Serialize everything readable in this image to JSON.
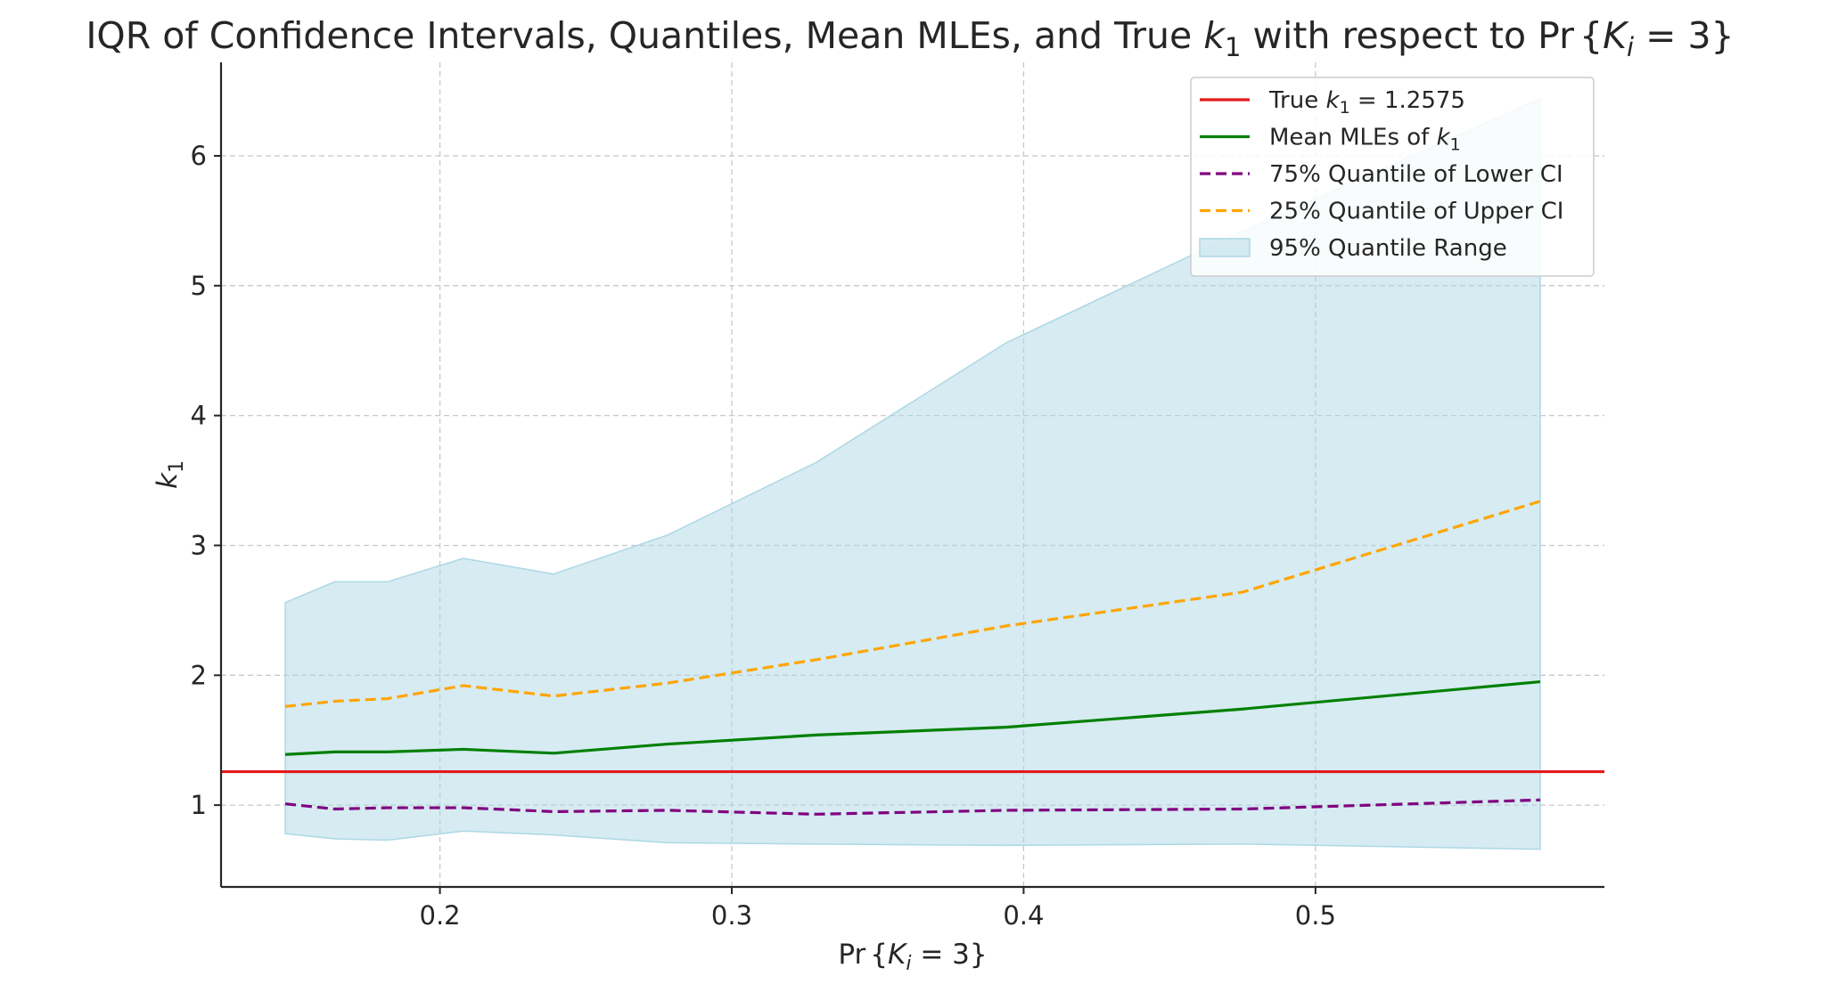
{
  "chart_data": {
    "type": "line",
    "title": "IQR of Confidence Intervals, Quantiles, Mean MLEs, and True k₁ with respect to Pr{Kᵢ = 3}",
    "title_parts": {
      "prefix": "IQR of Confidence Intervals, Quantiles, Mean MLEs, and True ",
      "var": "k",
      "sub": "1",
      "mid": " with respect to Pr",
      "cond_open": "{",
      "cond_var": "K",
      "cond_sub": "i",
      "cond_rest": " = 3",
      "cond_close": "}"
    },
    "xlabel": "Pr{Kᵢ = 3}",
    "xlabel_parts": {
      "prefix": "Pr",
      "open": "{",
      "var": "K",
      "sub": "i",
      "rest": " = 3",
      "close": "}"
    },
    "ylabel": "k₁",
    "ylabel_parts": {
      "var": "k",
      "sub": "1"
    },
    "xlim": [
      0.125,
      0.599
    ],
    "ylim": [
      0.37,
      6.72
    ],
    "xticks": [
      0.2,
      0.3,
      0.4,
      0.5
    ],
    "xtick_labels": [
      "0.2",
      "0.3",
      "0.4",
      "0.5"
    ],
    "yticks": [
      1,
      2,
      3,
      4,
      5,
      6
    ],
    "ytick_labels": [
      "1",
      "2",
      "3",
      "4",
      "5",
      "6"
    ],
    "grid": true,
    "legend_position": "top-right",
    "x": [
      0.147,
      0.164,
      0.182,
      0.208,
      0.239,
      0.278,
      0.329,
      0.394,
      0.475,
      0.577
    ],
    "true_value": {
      "name": "True k₁ = 1.2575",
      "name_parts": {
        "prefix": "True ",
        "var": "k",
        "sub": "1",
        "suffix": " = 1.2575"
      },
      "value": 1.2575,
      "color": "#e41a1c"
    },
    "series": [
      {
        "name": "Mean MLEs of k₁",
        "name_parts": {
          "prefix": "Mean MLEs of ",
          "var": "k",
          "sub": "1",
          "suffix": ""
        },
        "values": [
          1.39,
          1.41,
          1.41,
          1.43,
          1.4,
          1.47,
          1.54,
          1.6,
          1.74,
          1.95
        ],
        "color": "#008000",
        "style": "solid"
      },
      {
        "name": "75% Quantile of Lower CI",
        "values": [
          1.01,
          0.97,
          0.98,
          0.98,
          0.95,
          0.96,
          0.93,
          0.96,
          0.97,
          1.04
        ],
        "color": "#800080",
        "style": "dashed"
      },
      {
        "name": "25% Quantile of Upper CI",
        "values": [
          1.76,
          1.8,
          1.82,
          1.92,
          1.84,
          1.94,
          2.12,
          2.38,
          2.64,
          3.34
        ],
        "color": "#ffa500",
        "style": "dashed"
      }
    ],
    "band": {
      "name": "95% Quantile Range",
      "lower": [
        0.78,
        0.74,
        0.73,
        0.8,
        0.77,
        0.71,
        0.7,
        0.69,
        0.7,
        0.66
      ],
      "upper": [
        2.56,
        2.72,
        2.72,
        2.9,
        2.78,
        3.08,
        3.64,
        4.56,
        5.42,
        6.44
      ],
      "color": "#add8e6"
    },
    "legend": [
      {
        "ref": "true",
        "text": "True k₁ = 1.2575"
      },
      {
        "ref": "mean",
        "text": "Mean MLEs of k₁"
      },
      {
        "ref": "lower",
        "text": "75% Quantile of Lower CI"
      },
      {
        "ref": "upper",
        "text": "25% Quantile of Upper CI"
      },
      {
        "ref": "band",
        "text": "95% Quantile Range"
      }
    ]
  }
}
